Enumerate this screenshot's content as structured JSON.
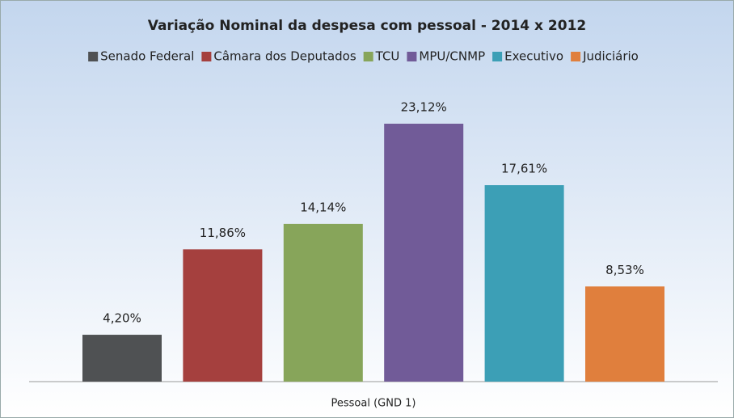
{
  "chart_data": {
    "type": "bar",
    "title": "Variação Nominal da despesa com pessoal - 2014 x 2012",
    "categories": [
      "Pessoal (GND 1)"
    ],
    "series": [
      {
        "name": "Senado Federal",
        "color": "#4f5153",
        "values": [
          4.2
        ],
        "value_labels": [
          "4,20%"
        ]
      },
      {
        "name": "Câmara dos Deputados",
        "color": "#a5403e",
        "values": [
          11.86
        ],
        "value_labels": [
          "11,86%"
        ]
      },
      {
        "name": "TCU",
        "color": "#87a55a",
        "values": [
          14.14
        ],
        "value_labels": [
          "14,14%"
        ]
      },
      {
        "name": "MPU/CNMP",
        "color": "#715b98",
        "values": [
          23.12
        ],
        "value_labels": [
          "23,12%"
        ]
      },
      {
        "name": "Executivo",
        "color": "#3c9fb6",
        "values": [
          17.61
        ],
        "value_labels": [
          "17,61%"
        ]
      },
      {
        "name": "Judiciário",
        "color": "#e07f3d",
        "values": [
          8.53
        ],
        "value_labels": [
          "8,53%"
        ]
      }
    ]
  }
}
